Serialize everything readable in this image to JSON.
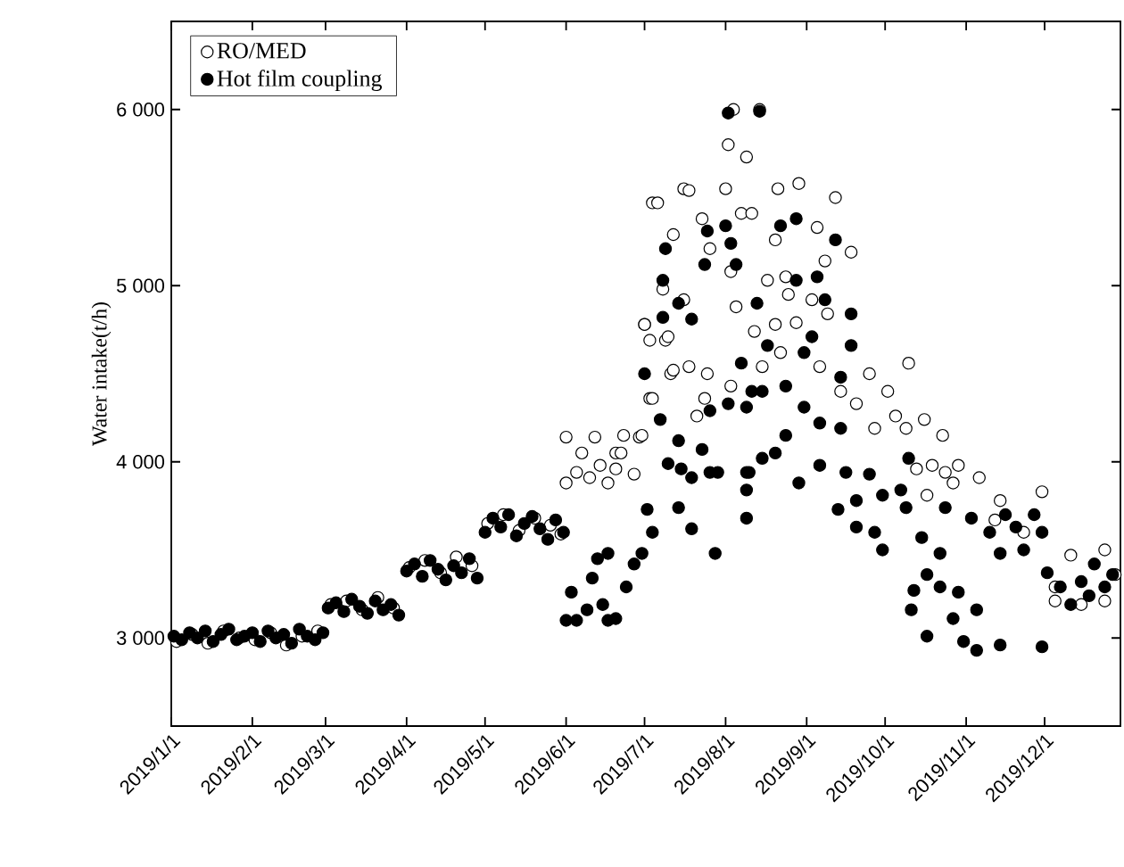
{
  "chart_data": {
    "type": "scatter",
    "ylabel": "Water intake(t/h)",
    "marker": "circle",
    "legend": "top left",
    "grid": false,
    "xlim": [
      "2019-01-01",
      "2019-12-30"
    ],
    "xticks": [
      {
        "value": "2019-01-01",
        "label": "2019/1/1"
      },
      {
        "value": "2019-02-01",
        "label": "2019/2/1"
      },
      {
        "value": "2019-03-01",
        "label": "2019/3/1"
      },
      {
        "value": "2019-04-01",
        "label": "2019/4/1"
      },
      {
        "value": "2019-05-01",
        "label": "2019/5/1"
      },
      {
        "value": "2019-06-01",
        "label": "2019/6/1"
      },
      {
        "value": "2019-07-01",
        "label": "2019/7/1"
      },
      {
        "value": "2019-08-01",
        "label": "2019/8/1"
      },
      {
        "value": "2019-09-01",
        "label": "2019/9/1"
      },
      {
        "value": "2019-10-01",
        "label": "2019/10/1"
      },
      {
        "value": "2019-11-01",
        "label": "2019/11/1"
      },
      {
        "value": "2019-12-01",
        "label": "2019/12/1"
      }
    ],
    "ylim": [
      2500,
      6500
    ],
    "yticks": [
      {
        "value": 3000,
        "label": "3 000"
      },
      {
        "value": 4000,
        "label": "4 000"
      },
      {
        "value": 5000,
        "label": "5 000"
      },
      {
        "value": 6000,
        "label": "6 000"
      }
    ],
    "series": [
      {
        "name": "RO/MED",
        "color": "#ffffff",
        "x": [
          "2019-01-03",
          "2019-01-09",
          "2019-01-15",
          "2019-01-21",
          "2019-01-27",
          "2019-02-02",
          "2019-02-08",
          "2019-02-14",
          "2019-02-20",
          "2019-02-26",
          "2019-03-03",
          "2019-03-09",
          "2019-03-15",
          "2019-03-21",
          "2019-03-27",
          "2019-04-02",
          "2019-04-08",
          "2019-04-14",
          "2019-04-20",
          "2019-04-26",
          "2019-05-02",
          "2019-05-08",
          "2019-05-14",
          "2019-05-20",
          "2019-05-26",
          "2019-05-30",
          "2019-06-01",
          "2019-06-01",
          "2019-06-05",
          "2019-06-07",
          "2019-06-10",
          "2019-06-12",
          "2019-06-14",
          "2019-06-17",
          "2019-06-20",
          "2019-06-20",
          "2019-06-22",
          "2019-06-23",
          "2019-06-27",
          "2019-06-29",
          "2019-06-30",
          "2019-07-01",
          "2019-07-01",
          "2019-07-03",
          "2019-07-03",
          "2019-07-04",
          "2019-07-04",
          "2019-07-06",
          "2019-07-08",
          "2019-07-09",
          "2019-07-10",
          "2019-07-11",
          "2019-07-12",
          "2019-07-12",
          "2019-07-16",
          "2019-07-16",
          "2019-07-18",
          "2019-07-18",
          "2019-07-21",
          "2019-07-23",
          "2019-07-24",
          "2019-07-25",
          "2019-07-26",
          "2019-08-01",
          "2019-08-02",
          "2019-08-03",
          "2019-08-03",
          "2019-08-04",
          "2019-08-05",
          "2019-08-07",
          "2019-08-09",
          "2019-08-11",
          "2019-08-12",
          "2019-08-14",
          "2019-08-15",
          "2019-08-17",
          "2019-08-20",
          "2019-08-20",
          "2019-08-21",
          "2019-08-22",
          "2019-08-24",
          "2019-08-25",
          "2019-08-28",
          "2019-08-29",
          "2019-09-03",
          "2019-09-05",
          "2019-09-06",
          "2019-09-08",
          "2019-09-09",
          "2019-09-12",
          "2019-09-14",
          "2019-09-18",
          "2019-09-20",
          "2019-09-25",
          "2019-09-27",
          "2019-10-02",
          "2019-10-05",
          "2019-10-09",
          "2019-10-10",
          "2019-10-13",
          "2019-10-16",
          "2019-10-17",
          "2019-10-19",
          "2019-10-23",
          "2019-10-24",
          "2019-10-27",
          "2019-10-29",
          "2019-11-06",
          "2019-11-12",
          "2019-11-14",
          "2019-11-23",
          "2019-11-30",
          "2019-12-05",
          "2019-12-05",
          "2019-12-11",
          "2019-12-15",
          "2019-12-24",
          "2019-12-24",
          "2019-12-28"
        ],
        "values": [
          2980,
          3020,
          2970,
          3040,
          3000,
          2990,
          3030,
          2960,
          3010,
          3040,
          3190,
          3210,
          3160,
          3230,
          3170,
          3400,
          3440,
          3370,
          3460,
          3410,
          3650,
          3700,
          3610,
          3680,
          3640,
          3590,
          3880,
          4140,
          3940,
          4050,
          3910,
          4140,
          3980,
          3880,
          3960,
          4050,
          4050,
          4150,
          3930,
          4140,
          4150,
          4780,
          4780,
          4360,
          4690,
          5470,
          4360,
          5470,
          4980,
          4690,
          4710,
          4500,
          5290,
          4520,
          5550,
          4920,
          5540,
          4540,
          4260,
          5380,
          4360,
          4500,
          5210,
          5550,
          5800,
          4430,
          5080,
          6000,
          4880,
          5410,
          5730,
          5410,
          4740,
          6000,
          4540,
          5030,
          5260,
          4780,
          5550,
          4620,
          5050,
          4950,
          4790,
          5580,
          4920,
          5330,
          4540,
          5140,
          4840,
          5500,
          4400,
          5190,
          4330,
          4500,
          4190,
          4400,
          4260,
          4190,
          4560,
          3960,
          4240,
          3810,
          3980,
          4150,
          3940,
          3880,
          3980,
          3910,
          3670,
          3780,
          3600,
          3830,
          3290,
          3210,
          3470,
          3190,
          3500,
          3210,
          3360
        ]
      },
      {
        "name": "Hot film coupling",
        "color": "#000000",
        "x": [
          "2019-01-02",
          "2019-01-05",
          "2019-01-08",
          "2019-01-11",
          "2019-01-14",
          "2019-01-17",
          "2019-01-20",
          "2019-01-23",
          "2019-01-26",
          "2019-01-29",
          "2019-02-01",
          "2019-02-04",
          "2019-02-07",
          "2019-02-10",
          "2019-02-13",
          "2019-02-16",
          "2019-02-19",
          "2019-02-22",
          "2019-02-25",
          "2019-02-28",
          "2019-03-02",
          "2019-03-05",
          "2019-03-08",
          "2019-03-11",
          "2019-03-14",
          "2019-03-17",
          "2019-03-20",
          "2019-03-23",
          "2019-03-26",
          "2019-03-29",
          "2019-04-01",
          "2019-04-04",
          "2019-04-07",
          "2019-04-10",
          "2019-04-13",
          "2019-04-16",
          "2019-04-19",
          "2019-04-22",
          "2019-04-25",
          "2019-04-28",
          "2019-05-01",
          "2019-05-04",
          "2019-05-07",
          "2019-05-10",
          "2019-05-13",
          "2019-05-16",
          "2019-05-19",
          "2019-05-22",
          "2019-05-25",
          "2019-05-28",
          "2019-05-31",
          "2019-06-01",
          "2019-06-03",
          "2019-06-05",
          "2019-06-09",
          "2019-06-11",
          "2019-06-13",
          "2019-06-15",
          "2019-06-17",
          "2019-06-17",
          "2019-06-20",
          "2019-06-24",
          "2019-06-27",
          "2019-06-30",
          "2019-07-01",
          "2019-07-02",
          "2019-07-04",
          "2019-07-07",
          "2019-07-08",
          "2019-07-08",
          "2019-07-09",
          "2019-07-10",
          "2019-07-14",
          "2019-07-14",
          "2019-07-14",
          "2019-07-15",
          "2019-07-19",
          "2019-07-19",
          "2019-07-19",
          "2019-07-23",
          "2019-07-24",
          "2019-07-25",
          "2019-07-26",
          "2019-07-26",
          "2019-07-28",
          "2019-07-29",
          "2019-08-01",
          "2019-08-02",
          "2019-08-02",
          "2019-08-03",
          "2019-08-05",
          "2019-08-07",
          "2019-08-09",
          "2019-08-09",
          "2019-08-09",
          "2019-08-09",
          "2019-08-10",
          "2019-08-11",
          "2019-08-13",
          "2019-08-14",
          "2019-08-15",
          "2019-08-15",
          "2019-08-17",
          "2019-08-20",
          "2019-08-22",
          "2019-08-24",
          "2019-08-24",
          "2019-08-28",
          "2019-08-28",
          "2019-08-29",
          "2019-08-31",
          "2019-08-31",
          "2019-09-03",
          "2019-09-05",
          "2019-09-06",
          "2019-09-06",
          "2019-09-08",
          "2019-09-12",
          "2019-09-13",
          "2019-09-14",
          "2019-09-14",
          "2019-09-16",
          "2019-09-18",
          "2019-09-18",
          "2019-09-20",
          "2019-09-20",
          "2019-09-25",
          "2019-09-27",
          "2019-09-30",
          "2019-09-30",
          "2019-10-07",
          "2019-10-09",
          "2019-10-10",
          "2019-10-11",
          "2019-10-12",
          "2019-10-15",
          "2019-10-17",
          "2019-10-17",
          "2019-10-22",
          "2019-10-22",
          "2019-10-24",
          "2019-10-27",
          "2019-10-29",
          "2019-10-31",
          "2019-11-03",
          "2019-11-05",
          "2019-11-05",
          "2019-11-10",
          "2019-11-14",
          "2019-11-14",
          "2019-11-16",
          "2019-11-20",
          "2019-11-23",
          "2019-11-27",
          "2019-11-30",
          "2019-11-30",
          "2019-12-02",
          "2019-12-07",
          "2019-12-11",
          "2019-12-15",
          "2019-12-18",
          "2019-12-20",
          "2019-12-24",
          "2019-12-27"
        ],
        "values": [
          3010,
          2990,
          3030,
          3000,
          3040,
          2980,
          3020,
          3050,
          2990,
          3010,
          3030,
          2980,
          3040,
          3000,
          3020,
          2970,
          3050,
          3010,
          2990,
          3030,
          3170,
          3200,
          3150,
          3220,
          3180,
          3140,
          3210,
          3160,
          3190,
          3130,
          3380,
          3420,
          3350,
          3440,
          3390,
          3330,
          3410,
          3370,
          3450,
          3340,
          3600,
          3680,
          3630,
          3700,
          3580,
          3650,
          3690,
          3620,
          3560,
          3670,
          3600,
          3100,
          3260,
          3100,
          3160,
          3340,
          3450,
          3190,
          3480,
          3100,
          3110,
          3290,
          3420,
          3480,
          4500,
          3730,
          3600,
          4240,
          5030,
          4820,
          5210,
          3990,
          4900,
          4120,
          3740,
          3960,
          4810,
          3910,
          3620,
          4070,
          5120,
          5310,
          4290,
          3940,
          3480,
          3940,
          5340,
          5980,
          4330,
          5240,
          5120,
          4560,
          4310,
          3940,
          3840,
          3680,
          3940,
          4400,
          4900,
          5990,
          4400,
          4020,
          4660,
          4050,
          5340,
          4430,
          4150,
          5380,
          5030,
          3880,
          4620,
          4310,
          4710,
          5050,
          4220,
          3980,
          4920,
          5260,
          3730,
          4480,
          4190,
          3940,
          4840,
          4660,
          3780,
          3630,
          3930,
          3600,
          3810,
          3500,
          3840,
          3740,
          4020,
          3160,
          3270,
          3570,
          3360,
          3010,
          3480,
          3290,
          3740,
          3110,
          3260,
          2980,
          3680,
          3160,
          2930,
          3600,
          3480,
          2960,
          3700,
          3630,
          3500,
          3700,
          3600,
          2950,
          3370,
          3290,
          3190,
          3320,
          3240,
          3420,
          3290,
          3360
        ]
      }
    ]
  }
}
